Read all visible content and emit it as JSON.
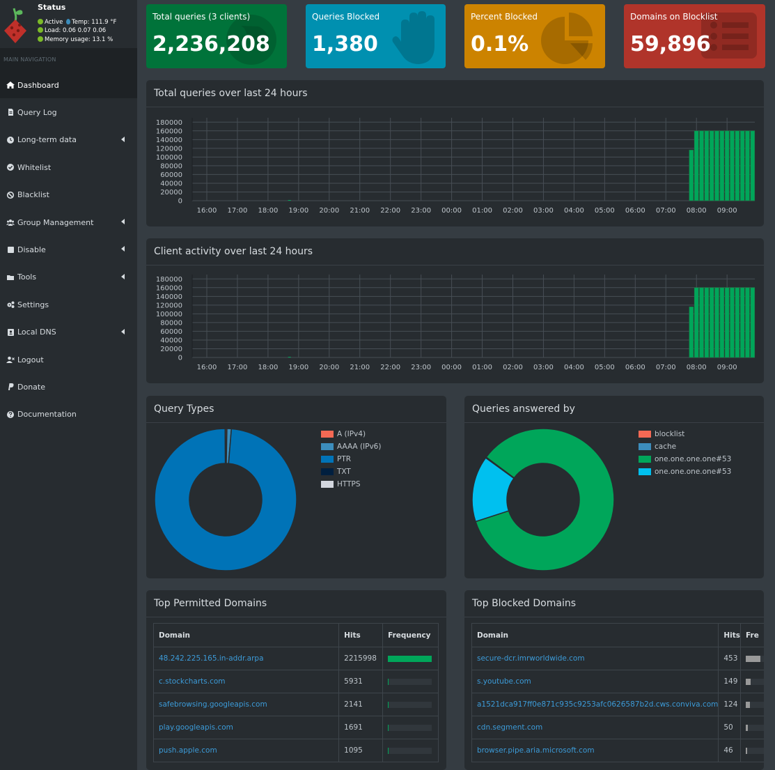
{
  "sidebar": {
    "status_title": "Status",
    "status_active": "Active",
    "temp": "Temp: 111.9 °F",
    "load": "Load:  0.06  0.07  0.06",
    "memory": "Memory usage:  13.1 %",
    "nav_header": "MAIN NAVIGATION",
    "items": [
      {
        "label": "Dashboard",
        "icon": "home-icon",
        "active": true
      },
      {
        "label": "Query Log",
        "icon": "file-icon"
      },
      {
        "label": "Long-term data",
        "icon": "clock-icon",
        "caret": true
      },
      {
        "label": "Whitelist",
        "icon": "check-circle-icon"
      },
      {
        "label": "Blacklist",
        "icon": "ban-icon"
      },
      {
        "label": "Group Management",
        "icon": "users-icon",
        "caret": true
      },
      {
        "label": "Disable",
        "icon": "stop-icon",
        "caret": true
      },
      {
        "label": "Tools",
        "icon": "folder-icon",
        "caret": true
      },
      {
        "label": "Settings",
        "icon": "gears-icon"
      },
      {
        "label": "Local DNS",
        "icon": "address-book-icon",
        "caret": true
      },
      {
        "label": "Logout",
        "icon": "user-times-icon"
      },
      {
        "label": "Donate",
        "icon": "paypal-icon"
      },
      {
        "label": "Documentation",
        "icon": "question-circle-icon"
      }
    ]
  },
  "stats": [
    {
      "label": "Total queries (3 clients)",
      "value": "2,236,208",
      "color": "#00733a",
      "icon": "globe-icon"
    },
    {
      "label": "Queries Blocked",
      "value": "1,380",
      "color": "#0090b0",
      "icon": "hand-icon"
    },
    {
      "label": "Percent Blocked",
      "value": "0.1%",
      "color": "#cc8300",
      "icon": "pie-chart-icon"
    },
    {
      "label": "Domains on Blocklist",
      "value": "59,896",
      "color": "#b0342a",
      "icon": "list-icon"
    }
  ],
  "panels": {
    "total_queries_title": "Total queries over last 24 hours",
    "client_activity_title": "Client activity over last 24 hours",
    "query_types_title": "Query Types",
    "answered_by_title": "Queries answered by",
    "top_permitted_title": "Top Permitted Domains",
    "top_blocked_title": "Top Blocked Domains"
  },
  "chart_data": [
    {
      "type": "bar",
      "title": "Total queries over last 24 hours",
      "x_ticks": [
        "16:00",
        "17:00",
        "18:00",
        "19:00",
        "20:00",
        "21:00",
        "22:00",
        "23:00",
        "00:00",
        "01:00",
        "02:00",
        "03:00",
        "04:00",
        "05:00",
        "06:00",
        "07:00",
        "08:00",
        "09:00"
      ],
      "y_ticks": [
        0,
        20000,
        40000,
        60000,
        80000,
        100000,
        120000,
        140000,
        160000,
        180000
      ],
      "ylim": [
        0,
        190000
      ],
      "series": [
        {
          "color": "#00a65a",
          "x": [
            "07:50",
            "08:00",
            "08:10",
            "08:20",
            "08:30",
            "08:40",
            "08:50",
            "09:00",
            "09:10",
            "09:20",
            "09:30",
            "09:40",
            "09:50"
          ],
          "values": [
            116000,
            160000,
            160000,
            160000,
            160000,
            160000,
            160000,
            160000,
            160000,
            160000,
            160000,
            160000,
            160000
          ]
        }
      ]
    },
    {
      "type": "bar",
      "title": "Client activity over last 24 hours",
      "x_ticks": [
        "16:00",
        "17:00",
        "18:00",
        "19:00",
        "20:00",
        "21:00",
        "22:00",
        "23:00",
        "00:00",
        "01:00",
        "02:00",
        "03:00",
        "04:00",
        "05:00",
        "06:00",
        "07:00",
        "08:00",
        "09:00"
      ],
      "y_ticks": [
        0,
        20000,
        40000,
        60000,
        80000,
        100000,
        120000,
        140000,
        160000,
        180000
      ],
      "ylim": [
        0,
        190000
      ],
      "series": [
        {
          "color": "#00a65a",
          "x": [
            "07:50",
            "08:00",
            "08:10",
            "08:20",
            "08:30",
            "08:40",
            "08:50",
            "09:00",
            "09:10",
            "09:20",
            "09:30",
            "09:40",
            "09:50"
          ],
          "values": [
            116000,
            160000,
            160000,
            160000,
            160000,
            160000,
            160000,
            160000,
            160000,
            160000,
            160000,
            160000,
            160000
          ]
        }
      ]
    },
    {
      "type": "pie",
      "title": "Query Types",
      "labels": [
        "A (IPv4)",
        "AAAA (IPv6)",
        "PTR",
        "TXT",
        "HTTPS"
      ],
      "colors": [
        "#f56954",
        "#3c8dbc",
        "#0073b7",
        "#001f3f",
        "#d2d6de"
      ],
      "values": [
        0.3,
        1.0,
        98.6,
        0.0,
        0.1
      ]
    },
    {
      "type": "pie",
      "title": "Queries answered by",
      "labels": [
        "blocklist",
        "cache",
        "one.one.one.one#53",
        "one.one.one.one#53"
      ],
      "colors": [
        "#f56954",
        "#3c8dbc",
        "#00a65a",
        "#00c0ef"
      ],
      "values": [
        0.1,
        0.1,
        84.8,
        15.0
      ]
    }
  ],
  "top_permitted": {
    "headers": [
      "Domain",
      "Hits",
      "Frequency"
    ],
    "rows": [
      {
        "domain": "48.242.225.165.in-addr.arpa",
        "hits": "2215998",
        "freq": 1.0
      },
      {
        "domain": "c.stockcharts.com",
        "hits": "5931",
        "freq": 0.003
      },
      {
        "domain": "safebrowsing.googleapis.com",
        "hits": "2141",
        "freq": 0.001
      },
      {
        "domain": "play.googleapis.com",
        "hits": "1691",
        "freq": 0.001
      },
      {
        "domain": "push.apple.com",
        "hits": "1095",
        "freq": 0.0005
      }
    ]
  },
  "top_blocked": {
    "headers": [
      "Domain",
      "Hits",
      "Fre"
    ],
    "rows": [
      {
        "domain": "secure-dcr.imrworldwide.com",
        "hits": "453",
        "freq": 0.33
      },
      {
        "domain": "s.youtube.com",
        "hits": "149",
        "freq": 0.11
      },
      {
        "domain": "a1521dca917ff0e871c935c9253afc0626587b2d.cws.conviva.com",
        "hits": "124",
        "freq": 0.09
      },
      {
        "domain": "cdn.segment.com",
        "hits": "50",
        "freq": 0.04
      },
      {
        "domain": "browser.pipe.aria.microsoft.com",
        "hits": "46",
        "freq": 0.03
      }
    ]
  }
}
